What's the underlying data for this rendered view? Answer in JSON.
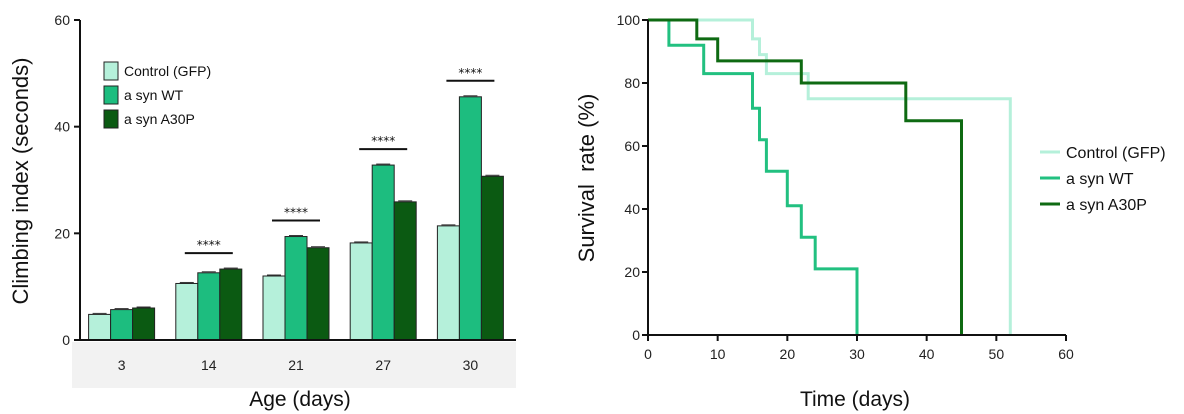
{
  "chart_data": [
    {
      "type": "bar",
      "title": "",
      "xlabel": "Age (days)",
      "ylabel": "Climbing index (seconds)",
      "ylim": [
        0,
        60
      ],
      "yticks": [
        0,
        20,
        40,
        60
      ],
      "categories": [
        "3",
        "14",
        "21",
        "27",
        "30"
      ],
      "series": [
        {
          "name": "Control (GFP)",
          "color": "#b5f0da",
          "values": [
            4.8,
            10.6,
            12.0,
            18.2,
            21.4
          ]
        },
        {
          "name": "a syn WT",
          "color": "#1dbd7f",
          "values": [
            5.7,
            12.6,
            19.4,
            32.8,
            45.6
          ]
        },
        {
          "name": "a syn A30P",
          "color": "#0b5a12",
          "values": [
            6.0,
            13.3,
            17.3,
            25.9,
            30.7
          ]
        }
      ],
      "significance": [
        {
          "category": "14",
          "label": "****"
        },
        {
          "category": "21",
          "label": "****"
        },
        {
          "category": "27",
          "label": "****"
        },
        {
          "category": "30",
          "label": "****"
        }
      ],
      "legend_position": "top-left",
      "grid": false
    },
    {
      "type": "line",
      "step": true,
      "title": "",
      "xlabel": "Time (days)",
      "ylabel": "Survival  rate (%)",
      "xlim": [
        0,
        60
      ],
      "ylim": [
        0,
        100
      ],
      "xticks": [
        0,
        10,
        20,
        30,
        40,
        50,
        60
      ],
      "yticks": [
        0,
        20,
        40,
        60,
        80,
        100
      ],
      "series": [
        {
          "name": "Control (GFP)",
          "color": "#b5f0da",
          "points": [
            [
              0,
              100
            ],
            [
              15,
              100
            ],
            [
              15,
              94
            ],
            [
              16,
              94
            ],
            [
              16,
              89
            ],
            [
              17,
              89
            ],
            [
              17,
              83
            ],
            [
              23,
              83
            ],
            [
              23,
              75
            ],
            [
              52,
              75
            ],
            [
              52,
              0
            ]
          ]
        },
        {
          "name": "a syn WT",
          "color": "#22c080",
          "points": [
            [
              0,
              100
            ],
            [
              3,
              100
            ],
            [
              3,
              92
            ],
            [
              8,
              92
            ],
            [
              8,
              83
            ],
            [
              15,
              83
            ],
            [
              15,
              72
            ],
            [
              16,
              72
            ],
            [
              16,
              62
            ],
            [
              17,
              62
            ],
            [
              17,
              52
            ],
            [
              20,
              52
            ],
            [
              20,
              41
            ],
            [
              22,
              41
            ],
            [
              22,
              31
            ],
            [
              24,
              31
            ],
            [
              24,
              21
            ],
            [
              30,
              21
            ],
            [
              30,
              0
            ]
          ]
        },
        {
          "name": "a syn A30P",
          "color": "#0e6a12",
          "points": [
            [
              0,
              100
            ],
            [
              7,
              100
            ],
            [
              7,
              94
            ],
            [
              10,
              94
            ],
            [
              10,
              87
            ],
            [
              22,
              87
            ],
            [
              22,
              80
            ],
            [
              37,
              80
            ],
            [
              37,
              68
            ],
            [
              45,
              68
            ],
            [
              45,
              0
            ]
          ]
        }
      ],
      "legend_position": "right",
      "grid": false
    }
  ]
}
